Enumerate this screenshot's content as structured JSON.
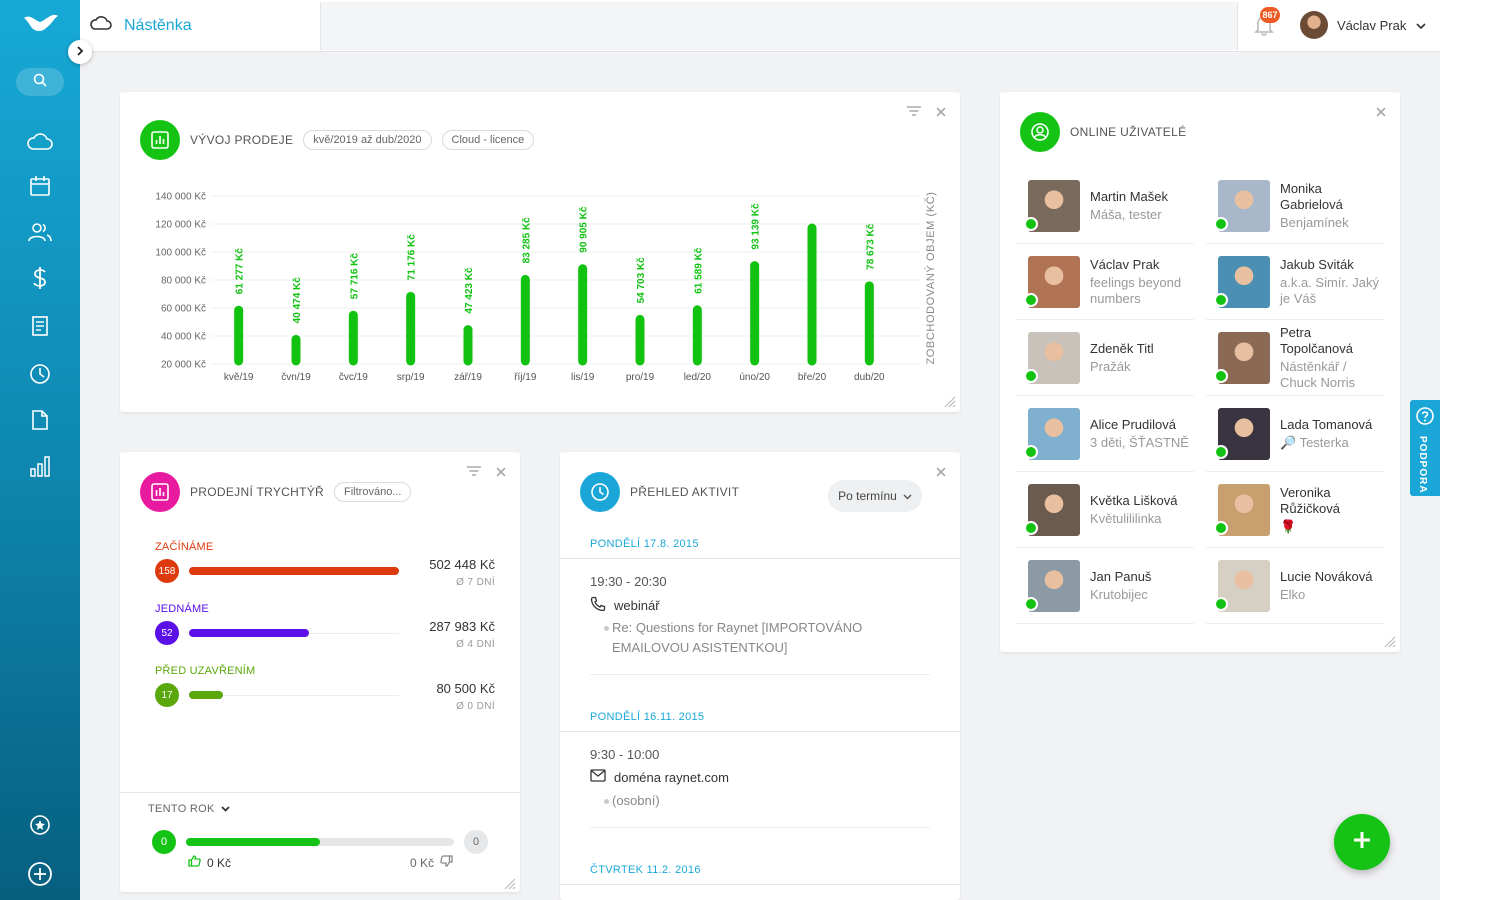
{
  "header": {
    "title": "Nástěnka",
    "notification_count": "867",
    "user_name": "Václav Prak"
  },
  "sales_widget": {
    "title": "VÝVOJ PRODEJE",
    "period_filter": "kvě/2019 až dub/2020",
    "product_filter": "Cloud - licence"
  },
  "chart_data": {
    "type": "bar",
    "categories": [
      "kvě/19",
      "čvn/19",
      "čvc/19",
      "srp/19",
      "zář/19",
      "říj/19",
      "lis/19",
      "pro/19",
      "led/20",
      "úno/20",
      "bře/20",
      "dub/20"
    ],
    "values": [
      61277,
      40474,
      57716,
      71176,
      47423,
      83285,
      90905,
      54703,
      61589,
      93139,
      120000,
      78673
    ],
    "data_labels": [
      "61 277 Kč",
      "40 474 Kč",
      "57 716 Kč",
      "71 176 Kč",
      "47 423 Kč",
      "83 285 Kč",
      "90 905 Kč",
      "54 703 Kč",
      "61 589 Kč",
      "93 139 Kč",
      "",
      "78 673 Kč"
    ],
    "y_ticks": [
      20000,
      40000,
      60000,
      80000,
      100000,
      120000,
      140000
    ],
    "y_tick_labels": [
      "20 000 Kč",
      "40 000 Kč",
      "60 000 Kč",
      "80 000 Kč",
      "100 000 Kč",
      "120 000 Kč",
      "140 000 Kč"
    ],
    "ylim": [
      20000,
      140000
    ],
    "ylabel": "ZOBCHODOVANÝ OBJEM (KČ)",
    "color": "#11c211",
    "grid": true
  },
  "funnel": {
    "title": "PRODEJNÍ TRYCHTÝŘ",
    "filter": "Filtrováno...",
    "stages": [
      {
        "name": "ZAČÍNÁME",
        "count": "158",
        "amount": "502 448 Kč",
        "days": "Ø 7 DNÍ",
        "color": "#dd3a0e",
        "fill": 1.0
      },
      {
        "name": "JEDNÁME",
        "count": "52",
        "amount": "287 983 Kč",
        "days": "Ø 4 DNÍ",
        "color": "#5a10e6",
        "fill": 0.57
      },
      {
        "name": "PŘED UZAVŘENÍM",
        "count": "17",
        "amount": "80 500 Kč",
        "days": "Ø 0 DNÍ",
        "color": "#5aa70c",
        "fill": 0.16
      }
    ],
    "footer": {
      "period": "TENTO ROK",
      "won_count": "0",
      "lost_count": "0",
      "won_amount": "0 Kč",
      "lost_amount": "0 Kč",
      "won_fill": 0.5
    }
  },
  "activities": {
    "title": "PŘEHLED AKTIVIT",
    "sort": "Po termínu",
    "groups": [
      {
        "date": "PONDĚLÍ 17.8. 2015",
        "time": "19:30 - 20:30",
        "type": "webinář",
        "desc": "Re: Questions for Raynet [IMPORTOVÁNO EMAILOVOU ASISTENTKOU]"
      },
      {
        "date": "PONDĚLÍ 16.11. 2015",
        "time": "9:30 - 10:00",
        "type": "doména raynet.com",
        "desc": "(osobní)"
      },
      {
        "date": "ČTVRTEK 11.2. 2016"
      }
    ]
  },
  "online_users": {
    "title": "ONLINE UŽIVATELÉ",
    "users": [
      {
        "name": "Martin Mašek",
        "note": "Máša, tester"
      },
      {
        "name": "Monika Gabrielová",
        "note": "Benjamínek"
      },
      {
        "name": "Václav Prak",
        "note": "feelings beyond numbers"
      },
      {
        "name": "Jakub Sviták",
        "note": "a.k.a. Simír. Jaký je Váš"
      },
      {
        "name": "Zdeněk Titl",
        "note": "Pražák"
      },
      {
        "name": "Petra Topolčanová",
        "note": "Nástěnkář / Chuck Norris"
      },
      {
        "name": "Alice Prudilová",
        "note": "3 děti, ŠŤASTNĚ"
      },
      {
        "name": "Lada Tomanová",
        "note": "🔎 Testerka"
      },
      {
        "name": "Květka Lišková",
        "note": "Květulililinka"
      },
      {
        "name": "Veronika Růžičková",
        "note": "🌹"
      },
      {
        "name": "Jan Panuš",
        "note": "Krutobijec"
      },
      {
        "name": "Lucie Nováková",
        "note": "Elko"
      }
    ]
  },
  "support": {
    "label": "PODPORA"
  }
}
